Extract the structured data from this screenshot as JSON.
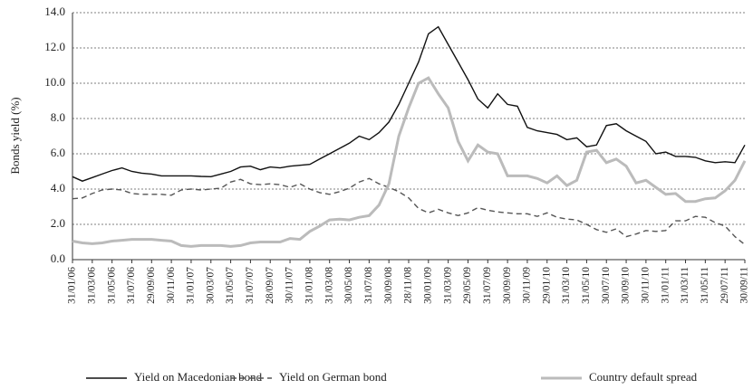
{
  "chart_data": {
    "type": "line",
    "y_label": "Bonds yield (%)",
    "categories": [
      "31/01/06",
      null,
      "31/03/06",
      null,
      "31/05/06",
      null,
      "31/07/06",
      null,
      "29/09/06",
      null,
      "30/11/06",
      null,
      "31/01/07",
      null,
      "30/03/07",
      null,
      "31/05/07",
      null,
      "31/07/07",
      null,
      "28/09/07",
      null,
      "30/11/07",
      null,
      "31/01/08",
      null,
      "31/03/08",
      null,
      "30/05/08",
      null,
      "31/07/08",
      null,
      "30/09/08",
      null,
      "28/11/08",
      null,
      "30/01/09",
      null,
      "31/03/09",
      null,
      "29/05/09",
      null,
      "31/07/09",
      null,
      "30/09/09",
      null,
      "30/11/09",
      null,
      "29/01/10",
      null,
      "31/03/10",
      null,
      "31/05/10",
      null,
      "30/07/10",
      null,
      "30/09/10",
      null,
      "30/11/10",
      null,
      "31/01/11",
      null,
      "31/03/11",
      null,
      "31/05/11",
      null,
      "29/07/11",
      null,
      "30/09/11"
    ],
    "series": [
      {
        "name": "Yield on Macedonian bond",
        "color": "#111111",
        "style": "solid",
        "linewidth": 1.4,
        "values": [
          4.7,
          4.45,
          4.65,
          4.85,
          5.05,
          5.2,
          5.0,
          4.9,
          4.85,
          4.75,
          4.75,
          4.75,
          4.75,
          4.72,
          4.7,
          4.85,
          5.0,
          5.25,
          5.3,
          5.1,
          5.25,
          5.2,
          5.3,
          5.35,
          5.4,
          5.7,
          6.0,
          6.3,
          6.6,
          7.0,
          6.8,
          7.2,
          7.8,
          8.8,
          10.0,
          11.2,
          12.8,
          13.2,
          12.2,
          11.2,
          10.2,
          9.1,
          8.6,
          9.4,
          8.8,
          8.7,
          7.5,
          7.3,
          7.2,
          7.1,
          6.8,
          6.9,
          6.4,
          6.5,
          7.6,
          7.7,
          7.3,
          7.0,
          6.7,
          6.0,
          6.1,
          5.85,
          5.85,
          5.8,
          5.6,
          5.5,
          5.55,
          5.5,
          6.5
        ]
      },
      {
        "name": "Yield on German bond",
        "color": "#555555",
        "style": "dashed",
        "linewidth": 1.4,
        "values": [
          3.45,
          3.5,
          3.75,
          3.95,
          4.0,
          3.95,
          3.75,
          3.7,
          3.7,
          3.7,
          3.65,
          3.95,
          4.0,
          3.95,
          4.0,
          4.05,
          4.4,
          4.55,
          4.3,
          4.25,
          4.3,
          4.25,
          4.1,
          4.3,
          4.0,
          3.8,
          3.7,
          3.85,
          4.05,
          4.4,
          4.6,
          4.3,
          4.1,
          3.85,
          3.5,
          2.9,
          2.65,
          2.85,
          2.65,
          2.5,
          2.65,
          2.95,
          2.8,
          2.7,
          2.65,
          2.6,
          2.6,
          2.45,
          2.65,
          2.4,
          2.3,
          2.25,
          2.0,
          1.7,
          1.55,
          1.75,
          1.3,
          1.45,
          1.65,
          1.6,
          1.65,
          2.2,
          2.2,
          2.45,
          2.4,
          2.1,
          1.9,
          1.3,
          0.85
        ]
      },
      {
        "name": "Country default spread",
        "color": "#bbbbbb",
        "style": "solid",
        "linewidth": 3,
        "values": [
          1.05,
          0.95,
          0.9,
          0.95,
          1.05,
          1.1,
          1.15,
          1.15,
          1.15,
          1.1,
          1.05,
          0.8,
          0.75,
          0.8,
          0.8,
          0.8,
          0.75,
          0.8,
          0.95,
          1.0,
          1.0,
          1.0,
          1.2,
          1.15,
          1.6,
          1.9,
          2.25,
          2.3,
          2.25,
          2.4,
          2.5,
          3.1,
          4.3,
          7.0,
          8.6,
          10.0,
          10.3,
          9.4,
          8.6,
          6.7,
          5.6,
          6.5,
          6.1,
          6.0,
          4.75,
          4.75,
          4.75,
          4.6,
          4.35,
          4.75,
          4.2,
          4.5,
          6.1,
          6.2,
          5.5,
          5.7,
          5.3,
          4.35,
          4.5,
          4.1,
          3.7,
          3.75,
          3.3,
          3.3,
          3.45,
          3.5,
          3.9,
          4.5,
          5.6
        ]
      }
    ],
    "ylim": [
      0,
      14
    ],
    "yticks": [
      {
        "value": 0,
        "label": "0.0"
      },
      {
        "value": 2,
        "label": "2.0"
      },
      {
        "value": 4,
        "label": "4.0"
      },
      {
        "value": 6,
        "label": "6.0"
      },
      {
        "value": 8,
        "label": "8.0"
      },
      {
        "value": 10,
        "label": "10.0"
      },
      {
        "value": 12,
        "label": "12.0"
      },
      {
        "value": 14,
        "label": "14.0"
      }
    ],
    "grid": true,
    "legend": "bottom"
  }
}
